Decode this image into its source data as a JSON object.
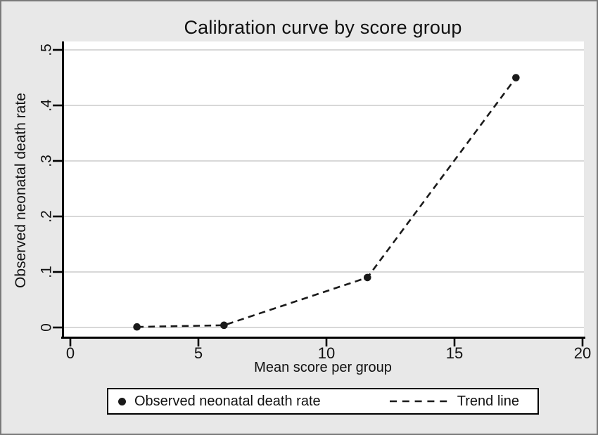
{
  "figure": {
    "background_color": "#e8e8e8",
    "plot_background_color": "#ffffff",
    "border_color": "#7a7a7a",
    "gridline_color": "#cccccc",
    "axis_color": "#000000",
    "series_color": "#1a1a1a"
  },
  "chart_data": {
    "type": "line",
    "title": "Calibration curve by score group",
    "xlabel": "Mean score per group",
    "ylabel": "Observed neonatal death rate",
    "xlim": [
      0,
      20
    ],
    "ylim": [
      0,
      0.5
    ],
    "xticks": {
      "values": [
        0,
        5,
        10,
        15,
        20
      ],
      "labels": [
        "0",
        "5",
        "10",
        "15",
        "20"
      ]
    },
    "yticks": {
      "values": [
        0,
        0.1,
        0.2,
        0.3,
        0.4,
        0.5
      ],
      "labels": [
        "0",
        ".1",
        ".2",
        ".3",
        ".4",
        ".5"
      ]
    },
    "grid": "horizontal",
    "x": [
      2.6,
      6.0,
      11.6,
      17.4
    ],
    "series": [
      {
        "name": "Observed neonatal death rate",
        "style": "scatter-filled-circle",
        "values": [
          0.001,
          0.004,
          0.09,
          0.45
        ]
      },
      {
        "name": "Trend line",
        "style": "dashed-line",
        "values": [
          0.001,
          0.004,
          0.09,
          0.45
        ]
      }
    ],
    "legend": {
      "position": "bottom",
      "entries": [
        {
          "marker": "dot",
          "label": "Observed neonatal death rate"
        },
        {
          "marker": "dashed-line",
          "label": "Trend line"
        }
      ]
    }
  }
}
